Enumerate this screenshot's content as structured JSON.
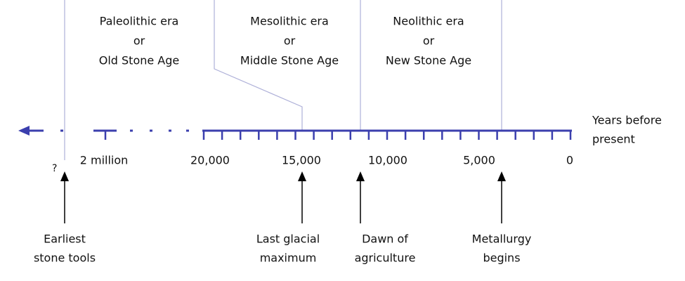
{
  "eras": [
    {
      "name": "Paleolithic era",
      "connector": "or",
      "alt": "Old Stone Age"
    },
    {
      "name": "Mesolithic era",
      "connector": "or",
      "alt": "Middle Stone Age"
    },
    {
      "name": "Neolithic era",
      "connector": "or",
      "alt": "New Stone Age"
    }
  ],
  "axis": {
    "title_line1": "Years before",
    "title_line2": "present",
    "unknown": "?",
    "tick_labels": [
      "2 million",
      "20,000",
      "15,000",
      "10,000",
      "5,000",
      "0"
    ]
  },
  "events": [
    {
      "line1": "Earliest",
      "line2": "stone tools"
    },
    {
      "line1": "Last glacial",
      "line2": "maximum"
    },
    {
      "line1": "Dawn of",
      "line2": "agriculture"
    },
    {
      "line1": "Metallurgy",
      "line2": "begins"
    }
  ]
}
